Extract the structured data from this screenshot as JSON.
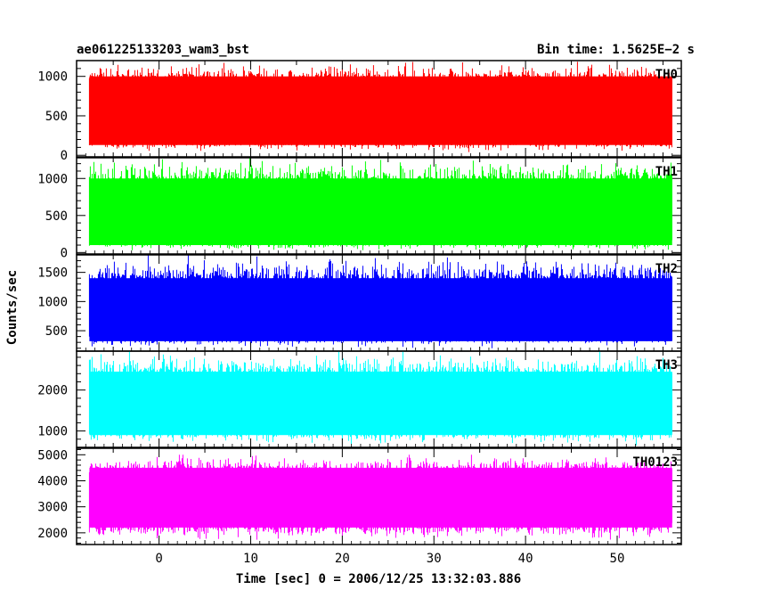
{
  "header": {
    "title": "ae061225133203_wam3_bst",
    "bin_time": "Bin time: 1.5625E−2 s"
  },
  "chart_data": {
    "type": "line",
    "title": "ae061225133203_wam3_bst",
    "subtitle": "Bin time: 1.5625E−2 s",
    "xlabel": "Time [sec] 0 = 2006/12/25 13:32:03.886",
    "ylabel": "Counts/sec",
    "xlim": [
      -9,
      57
    ],
    "xticks": [
      0,
      10,
      20,
      30,
      40,
      50
    ],
    "x_data_range": [
      -7.6,
      56.0
    ],
    "bin_time_s": 0.015625,
    "grid": false,
    "panels": [
      {
        "name": "TH0",
        "color": "#ff0000",
        "ylim": [
          -20,
          1200
        ],
        "yticks": [
          0,
          500,
          1000
        ],
        "ytick_labels": [
          "0",
          "500",
          "1000"
        ],
        "mean": 560,
        "band_low": 130,
        "band_high": 1000,
        "min": 30,
        "max": 1200
      },
      {
        "name": "TH1",
        "color": "#00ff00",
        "ylim": [
          -20,
          1280
        ],
        "yticks": [
          0,
          500,
          1000
        ],
        "ytick_labels": [
          "0",
          "500",
          "1000"
        ],
        "mean": 520,
        "band_low": 100,
        "band_high": 1000,
        "min": 10,
        "max": 1280
      },
      {
        "name": "TH2",
        "color": "#0000ff",
        "ylim": [
          150,
          1800
        ],
        "yticks": [
          500,
          1000,
          1500
        ],
        "ytick_labels": [
          "500",
          "1000",
          "1500"
        ],
        "mean": 820,
        "band_low": 320,
        "band_high": 1400,
        "min": 200,
        "max": 1800
      },
      {
        "name": "TH3",
        "color": "#00ffff",
        "ylim": [
          600,
          2950
        ],
        "yticks": [
          1000,
          2000
        ],
        "ytick_labels": [
          "1000",
          "2000"
        ],
        "mean": 1700,
        "band_low": 900,
        "band_high": 2450,
        "min": 650,
        "max": 2950
      },
      {
        "name": "TH0123",
        "color": "#ff00ff",
        "ylim": [
          1550,
          5250
        ],
        "yticks": [
          2000,
          3000,
          4000,
          5000
        ],
        "ytick_labels": [
          "2000",
          "3000",
          "4000",
          "5000"
        ],
        "mean": 3550,
        "band_low": 2200,
        "band_high": 4500,
        "min": 1650,
        "max": 5000
      }
    ]
  }
}
